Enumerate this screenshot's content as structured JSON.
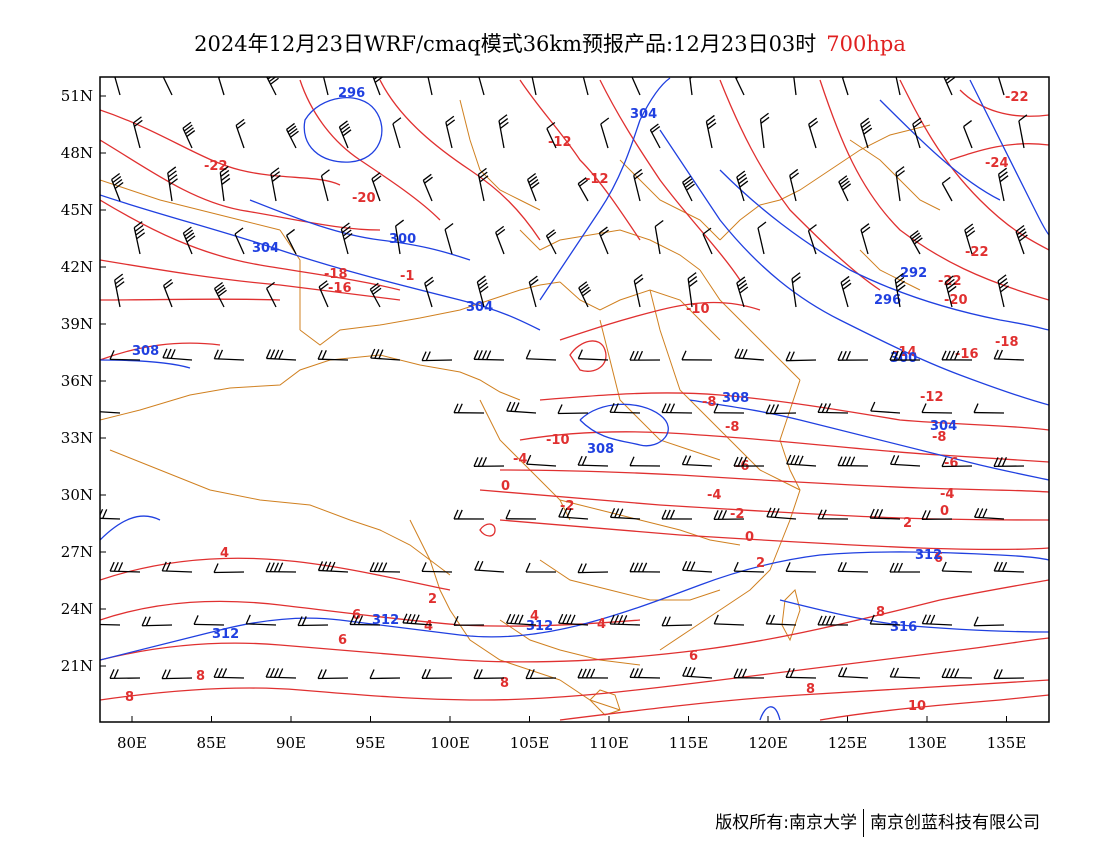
{
  "title": {
    "main": "2024年12月23日WRF/cmaq模式36km预报产品:12月23日03时",
    "level": "700hpa",
    "level_color": "#e02020"
  },
  "axes": {
    "lat_labels": [
      "51N",
      "48N",
      "45N",
      "42N",
      "39N",
      "36N",
      "33N",
      "30N",
      "27N",
      "24N",
      "21N"
    ],
    "lon_labels": [
      "80E",
      "85E",
      "90E",
      "95E",
      "100E",
      "105E",
      "110E",
      "115E",
      "120E",
      "125E",
      "130E",
      "135E"
    ]
  },
  "legend_colors": {
    "temperature": "#e03030",
    "height": "#2040e0",
    "borders": "#d08020",
    "wind": "#000000"
  },
  "temperature_labels": [
    "-22",
    "-12",
    "-12",
    "-20",
    "-18",
    "-16",
    "-1",
    "-10",
    "-22",
    "-24",
    "-22",
    "-22",
    "-20",
    "-18",
    "-16",
    "-14",
    "-12",
    "-10",
    "-8",
    "-8",
    "-8",
    "-6",
    "-6",
    "-4",
    "-4",
    "-4",
    "-2",
    "-2",
    "0",
    "0",
    "0",
    "2",
    "2",
    "2",
    "4",
    "4",
    "4",
    "4",
    "6",
    "6",
    "6",
    "6",
    "8",
    "8",
    "8",
    "8",
    "8",
    "10"
  ],
  "height_labels": [
    "296",
    "304",
    "304",
    "300",
    "304",
    "308",
    "308",
    "308",
    "292",
    "296",
    "300",
    "304",
    "312",
    "312",
    "312",
    "312",
    "316"
  ],
  "credit": {
    "left": "版权所有:南京大学",
    "right": "南京创蓝科技有限公司"
  }
}
